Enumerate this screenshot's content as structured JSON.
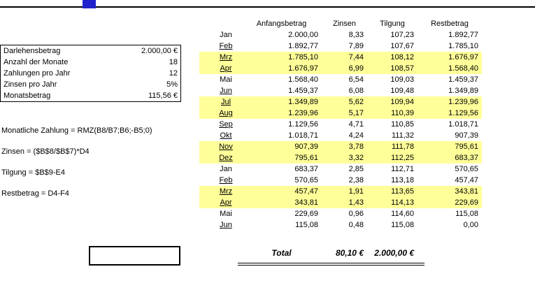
{
  "decoration": {
    "blue_box_color": "#2222cc",
    "top_line_color": "#000000"
  },
  "highlight_color": "#ffff99",
  "left_panel": {
    "rows": [
      {
        "label": "Darlehensbetrag",
        "value": "2.000,00 €"
      },
      {
        "label": "Anzahl der Monate",
        "value": "18"
      },
      {
        "label": "Zahlungen pro Jahr",
        "value": "12"
      },
      {
        "label": "Zinsen pro Jahr",
        "value": "5%"
      },
      {
        "label": "Monatsbetrag",
        "value": "115,56 €"
      }
    ]
  },
  "formulas": [
    "Monatliche Zahlung = RMZ(B8/B7;B6;-B5;0)",
    "Zinsen = ($B$8/$B$7)*D4",
    "Tilgung = $B$9-E4",
    "Restbetrag = D4-F4"
  ],
  "table": {
    "headers": [
      "Anfangsbetrag",
      "Zinsen",
      "Tilgung",
      "Restbetrag"
    ],
    "rows": [
      {
        "month": "Jan",
        "anfangsbetrag": "2.000,00",
        "zinsen": "8,33",
        "tilgung": "107,23",
        "restbetrag": "1.892,77",
        "highlight": false,
        "underline": false
      },
      {
        "month": "Feb",
        "anfangsbetrag": "1.892,77",
        "zinsen": "7,89",
        "tilgung": "107,67",
        "restbetrag": "1.785,10",
        "highlight": false,
        "underline": true
      },
      {
        "month": "Mrz",
        "anfangsbetrag": "1.785,10",
        "zinsen": "7,44",
        "tilgung": "108,12",
        "restbetrag": "1.676,97",
        "highlight": true,
        "underline": true
      },
      {
        "month": "Apr",
        "anfangsbetrag": "1.676,97",
        "zinsen": "6,99",
        "tilgung": "108,57",
        "restbetrag": "1.568,40",
        "highlight": true,
        "underline": true
      },
      {
        "month": "Mai",
        "anfangsbetrag": "1.568,40",
        "zinsen": "6,54",
        "tilgung": "109,03",
        "restbetrag": "1.459,37",
        "highlight": false,
        "underline": false
      },
      {
        "month": "Jun",
        "anfangsbetrag": "1.459,37",
        "zinsen": "6,08",
        "tilgung": "109,48",
        "restbetrag": "1.349,89",
        "highlight": false,
        "underline": true
      },
      {
        "month": "Jul",
        "anfangsbetrag": "1.349,89",
        "zinsen": "5,62",
        "tilgung": "109,94",
        "restbetrag": "1.239,96",
        "highlight": true,
        "underline": true
      },
      {
        "month": "Aug",
        "anfangsbetrag": "1.239,96",
        "zinsen": "5,17",
        "tilgung": "110,39",
        "restbetrag": "1.129,56",
        "highlight": true,
        "underline": true
      },
      {
        "month": "Sep",
        "anfangsbetrag": "1.129,56",
        "zinsen": "4,71",
        "tilgung": "110,85",
        "restbetrag": "1.018,71",
        "highlight": false,
        "underline": true
      },
      {
        "month": "Okt",
        "anfangsbetrag": "1.018,71",
        "zinsen": "4,24",
        "tilgung": "111,32",
        "restbetrag": "907,39",
        "highlight": false,
        "underline": true
      },
      {
        "month": "Nov",
        "anfangsbetrag": "907,39",
        "zinsen": "3,78",
        "tilgung": "111,78",
        "restbetrag": "795,61",
        "highlight": true,
        "underline": true
      },
      {
        "month": "Dez",
        "anfangsbetrag": "795,61",
        "zinsen": "3,32",
        "tilgung": "112,25",
        "restbetrag": "683,37",
        "highlight": true,
        "underline": true
      },
      {
        "month": "Jan",
        "anfangsbetrag": "683,37",
        "zinsen": "2,85",
        "tilgung": "112,71",
        "restbetrag": "570,65",
        "highlight": false,
        "underline": false
      },
      {
        "month": "Feb",
        "anfangsbetrag": "570,65",
        "zinsen": "2,38",
        "tilgung": "113,18",
        "restbetrag": "457,47",
        "highlight": false,
        "underline": true
      },
      {
        "month": "Mrz",
        "anfangsbetrag": "457,47",
        "zinsen": "1,91",
        "tilgung": "113,65",
        "restbetrag": "343,81",
        "highlight": true,
        "underline": true
      },
      {
        "month": "Apr",
        "anfangsbetrag": "343,81",
        "zinsen": "1,43",
        "tilgung": "114,13",
        "restbetrag": "229,69",
        "highlight": true,
        "underline": true
      },
      {
        "month": "Mai",
        "anfangsbetrag": "229,69",
        "zinsen": "0,96",
        "tilgung": "114,60",
        "restbetrag": "115,08",
        "highlight": false,
        "underline": false
      },
      {
        "month": "Jun",
        "anfangsbetrag": "115,08",
        "zinsen": "0,48",
        "tilgung": "115,08",
        "restbetrag": "0,00",
        "highlight": false,
        "underline": true
      }
    ],
    "total": {
      "label": "Total",
      "zinsen_total": "80,10 €",
      "tilgung_total": "2.000,00 €"
    }
  }
}
